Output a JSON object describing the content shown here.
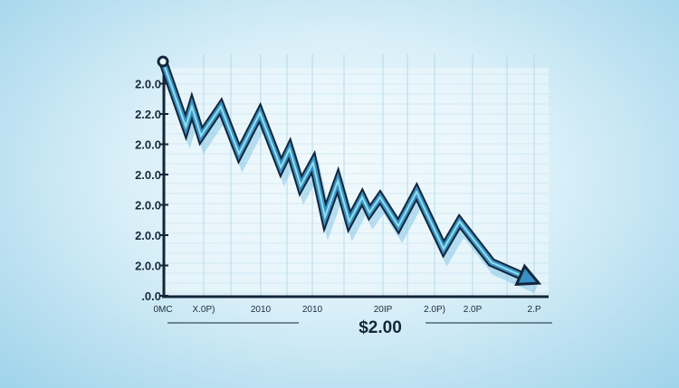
{
  "chart_data": {
    "type": "line",
    "title": "$2.00",
    "ylabel": "",
    "xlabel": "",
    "y_tick_labels": [
      "2.0.0",
      "2.2.0",
      "2.0.0",
      "2.0.0",
      "2.0.0",
      "2.0.0",
      "2.0.0",
      ".0.0"
    ],
    "x_tick_labels": [
      "0MC",
      "X.0P)",
      "2010",
      "2010",
      "20IP",
      "2.0P)",
      "2.0P",
      "2.P"
    ],
    "ylim": [
      0,
      7
    ],
    "xlim": [
      0,
      100
    ],
    "grid": true,
    "arrow_end": true,
    "colors": {
      "line": "#3a8fc4",
      "line_highlight": "#8fe0ea",
      "outline": "#13263a",
      "grid": "#a9d4ea",
      "axis": "#13263a"
    },
    "series": [
      {
        "x": [
          0,
          6,
          7.6,
          10,
          15.2,
          20,
          25.5,
          31,
          33.3,
          36.2,
          39.5,
          42.6,
          46,
          49,
          52.4,
          54.3,
          57.1,
          61.9,
          66.7,
          73.8,
          78,
          86.4,
          97.1
        ],
        "y": [
          7.73,
          5.58,
          6.24,
          5.28,
          6.24,
          4.69,
          6.03,
          4.24,
          4.84,
          3.64,
          4.39,
          2.6,
          3.79,
          2.45,
          3.25,
          2.75,
          3.25,
          2.3,
          3.43,
          1.55,
          2.45,
          1.1,
          0.51
        ]
      }
    ]
  }
}
